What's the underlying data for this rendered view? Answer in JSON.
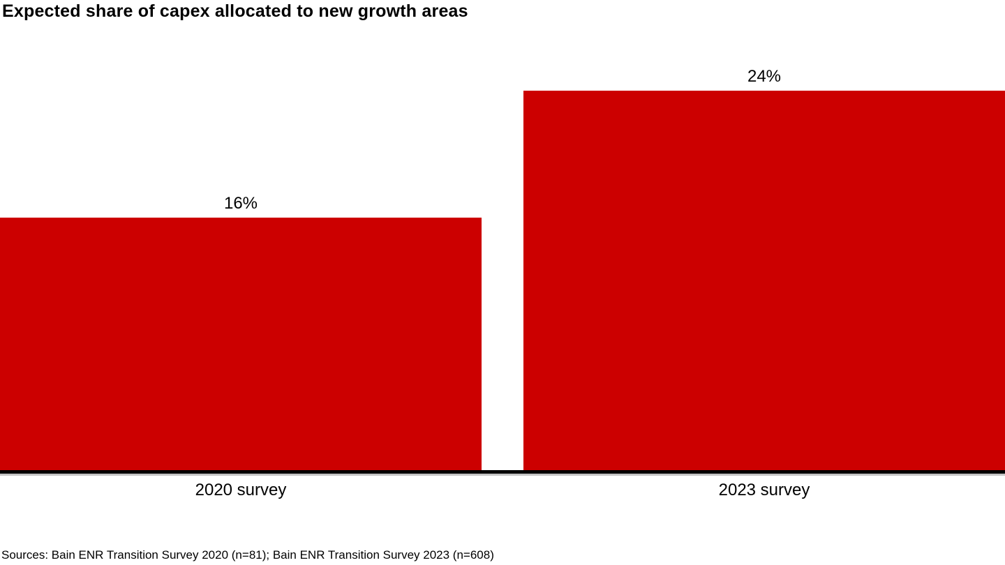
{
  "chart_data": {
    "type": "bar",
    "title": "Expected share of capex allocated to new growth areas",
    "categories": [
      "2020 survey",
      "2023 survey"
    ],
    "values": [
      16,
      24
    ],
    "value_labels": [
      "16%",
      "24%"
    ],
    "xlabel": "",
    "ylabel": "",
    "ylim": [
      0,
      24
    ],
    "grid": "off",
    "legend": "none",
    "bar_color": "#cc0000",
    "axis_color": "#000000",
    "source": "Sources: Bain ENR Transition Survey 2020 (n=81); Bain ENR Transition Survey 2023 (n=608)"
  }
}
